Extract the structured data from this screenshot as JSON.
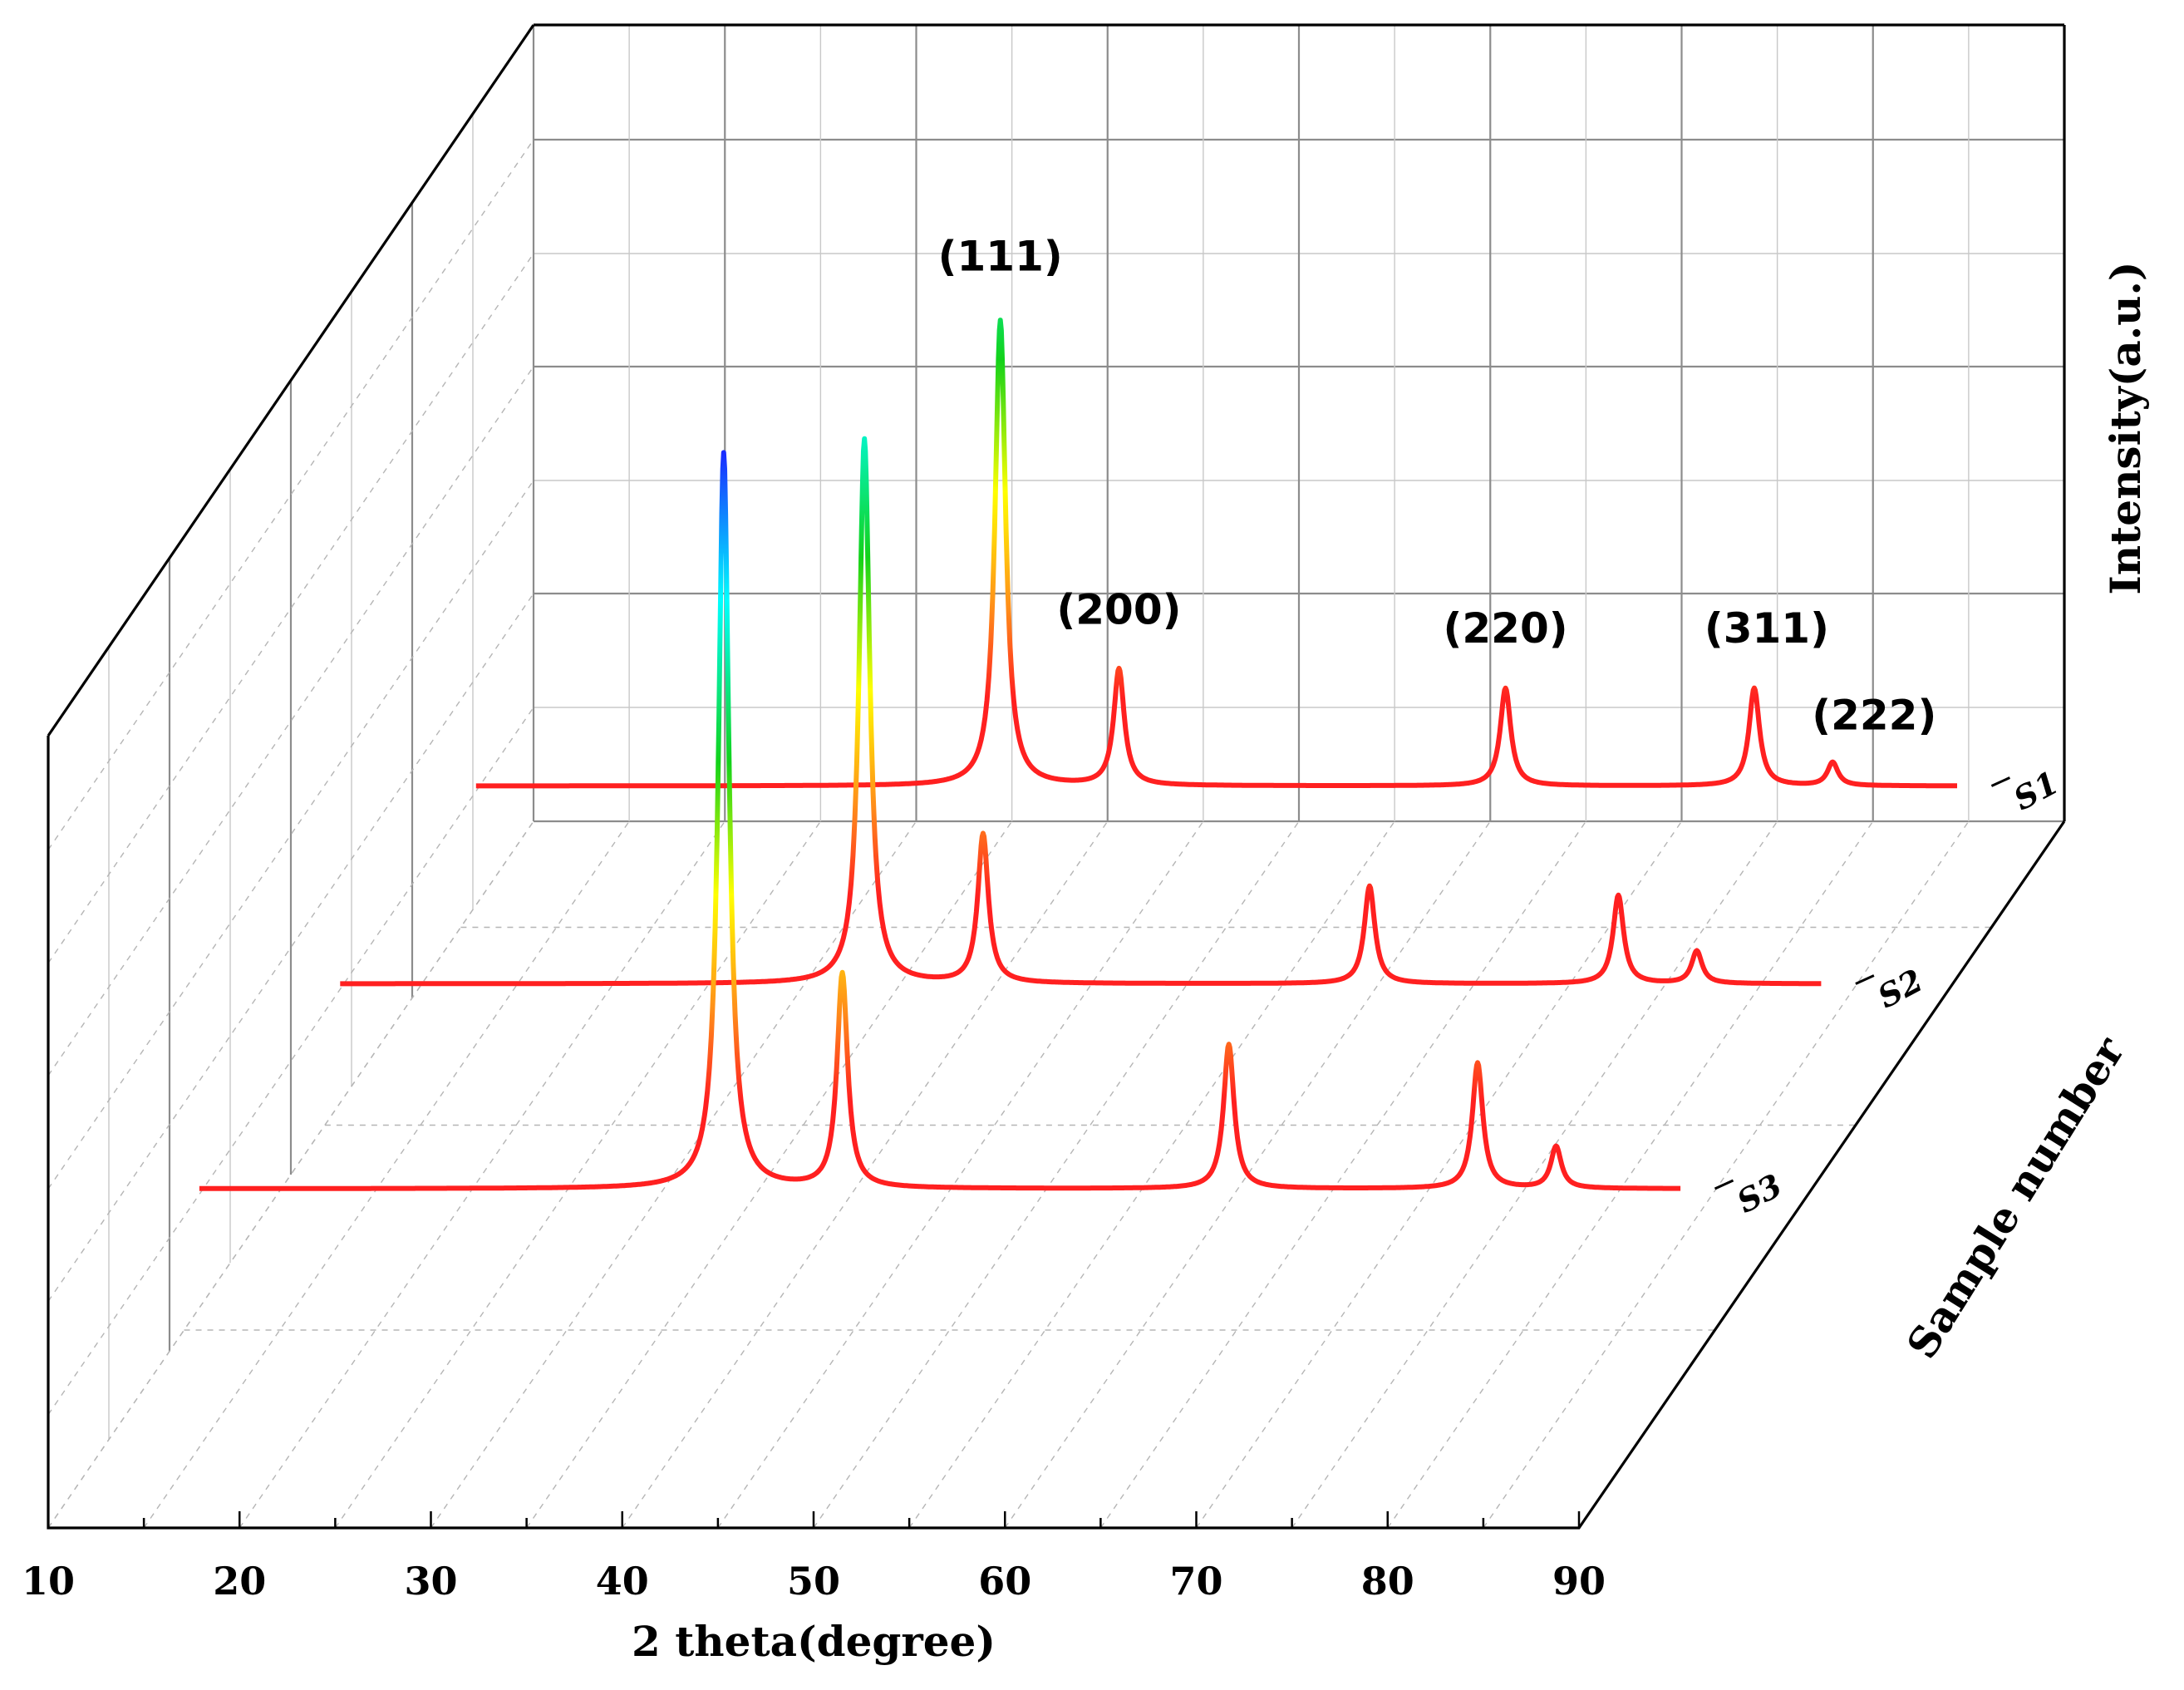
{
  "chart_data": {
    "type": "line",
    "subtype": "3d-waterfall",
    "xlabel": "2 theta(degree)",
    "ylabel": "Sample number",
    "zlabel": "Intensity(a.u.)",
    "xlim": [
      10,
      90
    ],
    "xticks": [
      "10",
      "20",
      "30",
      "40",
      "50",
      "60",
      "70",
      "80",
      "90"
    ],
    "grid": true,
    "peak_labels": [
      {
        "text": "(111)",
        "x": 38.2
      },
      {
        "text": "(200)",
        "x": 44.4
      },
      {
        "text": "(220)",
        "x": 64.6
      },
      {
        "text": "(311)",
        "x": 77.6
      },
      {
        "text": "(222)",
        "x": 81.7
      }
    ],
    "series": [
      {
        "name": "S1",
        "peaks": [
          {
            "x": 38.2,
            "height": 1.0
          },
          {
            "x": 44.4,
            "height": 0.25
          },
          {
            "x": 64.6,
            "height": 0.21
          },
          {
            "x": 77.6,
            "height": 0.21
          },
          {
            "x": 81.7,
            "height": 0.05
          }
        ]
      },
      {
        "name": "S2",
        "peaks": [
          {
            "x": 38.2,
            "height": 1.17
          },
          {
            "x": 44.4,
            "height": 0.32
          },
          {
            "x": 64.6,
            "height": 0.21
          },
          {
            "x": 77.6,
            "height": 0.19
          },
          {
            "x": 81.7,
            "height": 0.07
          }
        ]
      },
      {
        "name": "S3",
        "peaks": [
          {
            "x": 38.2,
            "height": 1.58
          },
          {
            "x": 44.4,
            "height": 0.46
          },
          {
            "x": 64.6,
            "height": 0.31
          },
          {
            "x": 77.6,
            "height": 0.27
          },
          {
            "x": 81.7,
            "height": 0.09
          }
        ]
      }
    ],
    "colors": {
      "baseline": "#ff2020",
      "colormap": [
        "#ff2020",
        "#ff8c1a",
        "#ffff00",
        "#12d21a",
        "#00ffff",
        "#1a2cff"
      ]
    }
  }
}
